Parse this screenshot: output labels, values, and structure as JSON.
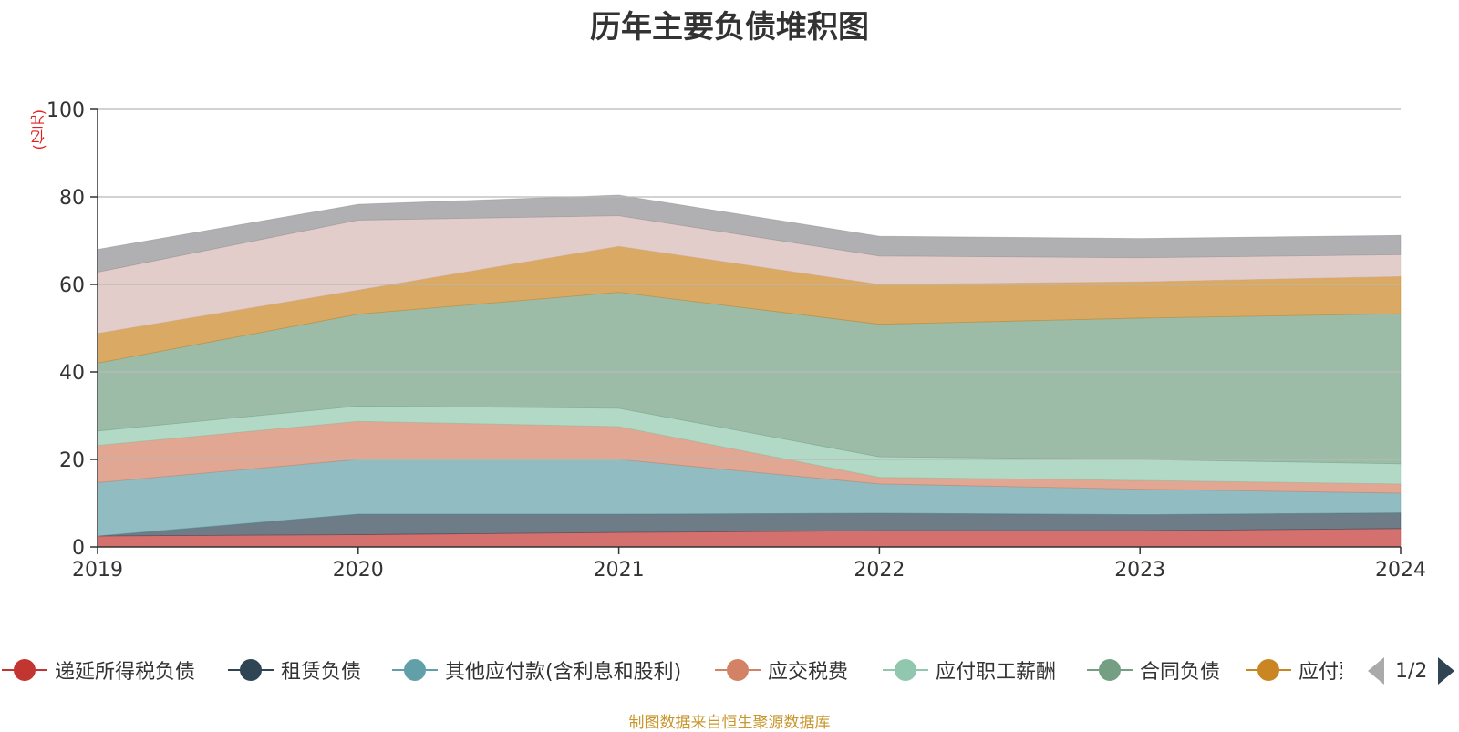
{
  "title": "历年主要负债堆积图",
  "unit_label": "(亿元)",
  "source": "制图数据来自恒生聚源数据库",
  "pager": {
    "text": "1/2"
  },
  "legend": [
    {
      "name": "递延所得税负债",
      "color": "#c23531",
      "icon": "circle-dot-icon"
    },
    {
      "name": "租赁负债",
      "color": "#2f4554",
      "icon": "circle-dot-icon"
    },
    {
      "name": "其他应付款(含利息和股利)",
      "color": "#61a0a8",
      "icon": "circle-dot-icon"
    },
    {
      "name": "应交税费",
      "color": "#d48265",
      "icon": "circle-dot-icon"
    },
    {
      "name": "应付职工薪酬",
      "color": "#91c7ae",
      "icon": "circle-dot-icon"
    },
    {
      "name": "合同负债",
      "color": "#749f83",
      "icon": "circle-dot-icon"
    },
    {
      "name": "应付票据",
      "color": "#ca8622",
      "icon": "circle-dot-icon"
    }
  ],
  "chart_data": {
    "type": "area",
    "stacked": true,
    "title": "历年主要负债堆积图",
    "ylabel": "(亿元)",
    "x": [
      "2019",
      "2020",
      "2021",
      "2022",
      "2023",
      "2024"
    ],
    "ylim": [
      0,
      100
    ],
    "yticks": [
      0,
      20,
      40,
      60,
      80,
      100
    ],
    "grid": true,
    "legend_position": "bottom",
    "series": [
      {
        "name": "递延所得税负债",
        "color": "#c23531",
        "values": [
          2.5,
          2.8,
          3.3,
          3.7,
          3.7,
          4.2
        ]
      },
      {
        "name": "租赁负债",
        "color": "#2f4554",
        "values": [
          0,
          4.7,
          4.2,
          4.0,
          3.7,
          3.6
        ]
      },
      {
        "name": "其他应付款(含利息和股利)",
        "color": "#61a0a8",
        "values": [
          12.2,
          12.5,
          12.5,
          6.7,
          5.8,
          4.5
        ]
      },
      {
        "name": "应交税费",
        "color": "#d48265",
        "values": [
          8.5,
          8.7,
          7.5,
          1.5,
          2.0,
          2.1
        ]
      },
      {
        "name": "应付职工薪酬",
        "color": "#91c7ae",
        "values": [
          3.3,
          3.5,
          4.2,
          4.7,
          4.8,
          4.6
        ]
      },
      {
        "name": "合同负债",
        "color": "#749f83",
        "values": [
          15.5,
          21.0,
          26.5,
          30.3,
          32.3,
          34.3
        ]
      },
      {
        "color": "#ca8622",
        "values": [
          6.8,
          5.5,
          10.5,
          9.1,
          8.3,
          8.5
        ]
      },
      {
        "color": "#d6b8b4",
        "values": [
          14.0,
          16.0,
          7.0,
          6.5,
          5.5,
          5.0
        ]
      },
      {
        "color": "#8e8e93",
        "values": [
          5.2,
          3.6,
          4.7,
          4.5,
          4.4,
          4.4
        ]
      }
    ]
  }
}
